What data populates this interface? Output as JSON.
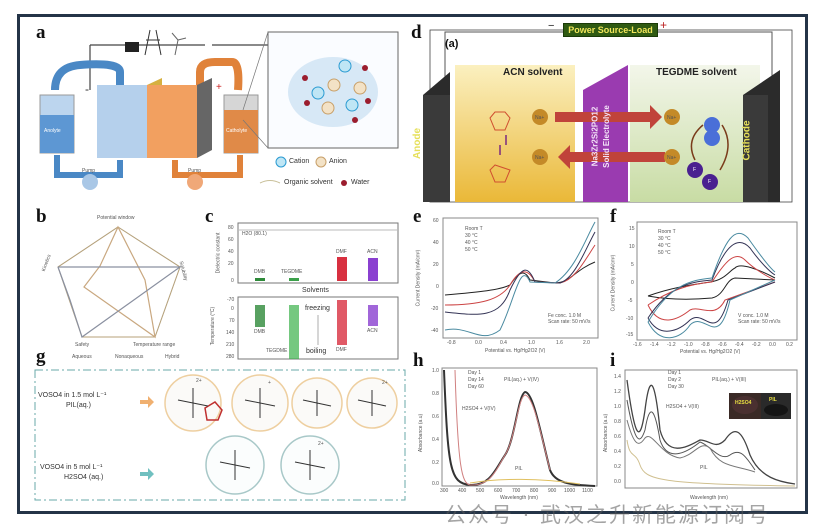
{
  "panels": {
    "a": {
      "label": "a",
      "anolyte": "Anolyte",
      "catholyte": "Catholyte",
      "pump": "Pump",
      "minus": "-",
      "plus": "+",
      "legend": {
        "cation": "Cation",
        "anion": "Anion",
        "solvent": "Organic solvent",
        "water": "Water"
      }
    },
    "b": {
      "label": "b",
      "axes": [
        "Potential window",
        "Solubility",
        "Temperature range",
        "Safety",
        "Kinetics"
      ],
      "legend": [
        "Aqueous",
        "Nonaqueous",
        "Hybrid"
      ]
    },
    "c": {
      "label": "c",
      "top_ylabel": "Dielectric constant",
      "bottom_ylabel": "Temperature (°C)",
      "xlabel": "Solvents",
      "h2o": "H2O (80.1)",
      "top_ticks": [
        "80",
        "60",
        "40",
        "20",
        "0"
      ],
      "bottom_ticks": [
        "-70",
        "0",
        "70",
        "140",
        "210",
        "280"
      ],
      "solvents": [
        "DMB",
        "TEGDME",
        "DMF",
        "ACN"
      ],
      "freezing": "freezing",
      "boiling": "boiling"
    },
    "d": {
      "label": "d",
      "sublabel": "(a)",
      "power": "Power Source-Load",
      "minus": "−",
      "plus": "+",
      "anode": "Anode",
      "cathode": "Cathode",
      "acn": "ACN solvent",
      "tegdme": "TEGDME solvent",
      "membrane_formula": "Na3Zr2Si2PO12",
      "membrane": "Solid Electrolyte",
      "na": "Na+",
      "f": "F"
    },
    "e": {
      "label": "e",
      "xlabel": "Potential vs. Hg/Hg2O2 (V)",
      "ylabel": "Current Density (mA/cm²)",
      "legend": [
        "Room T",
        "30 °C",
        "40 °C",
        "50 °C"
      ],
      "note1": "Fe conc. 1.0 M",
      "note2": "Scan rate: 50 mV/s",
      "yticks": [
        "60",
        "40",
        "20",
        "0",
        "-20",
        "-40"
      ],
      "xticks": [
        "-0.8",
        "0.0",
        "0.4",
        "1.0",
        "1.6",
        "2.0"
      ]
    },
    "f": {
      "label": "f",
      "xlabel": "Potential vs. Hg/Hg2O2 (V)",
      "ylabel": "Current Density (mA/cm²)",
      "legend": [
        "Room T",
        "30 °C",
        "40 °C",
        "50 °C"
      ],
      "note1": "V conc. 1.0 M",
      "note2": "Scan rate: 50 mV/s",
      "yticks": [
        "15",
        "10",
        "5",
        "0",
        "-5",
        "-10",
        "-15"
      ],
      "xticks": [
        "-1.6",
        "-1.4",
        "-1.2",
        "-1.0",
        "-0.8",
        "-0.6",
        "-0.4",
        "-0.2",
        "0.0",
        "0.2"
      ]
    },
    "g": {
      "label": "g",
      "row1": "VOSO4 in 1.5 mol L⁻¹",
      "row1b": "PIL(aq.)",
      "row2": "VOSO4 in 5 mol L⁻¹",
      "row2b": "H2SO4 (aq.)",
      "charges": [
        "2+",
        "+",
        "",
        "2+",
        "",
        "2+"
      ]
    },
    "h": {
      "label": "h",
      "xlabel": "Wavelength (nm)",
      "ylabel": "Absorbance (a.u)",
      "legend": [
        "Day 1",
        "Day 14",
        "Day 60"
      ],
      "ann1": "PIL(aq.) + V(IV)",
      "ann2": "H2SO4 + V(IV)",
      "ann3": "PIL",
      "yticks": [
        "1.0",
        "0.8",
        "0.6",
        "0.4",
        "0.2",
        "0.0"
      ],
      "xticks": [
        "300",
        "400",
        "500",
        "600",
        "700",
        "800",
        "900",
        "1000",
        "1100"
      ]
    },
    "i": {
      "label": "i",
      "xlabel": "Wavelength (nm)",
      "ylabel": "Absorbance (a.u)",
      "legend": [
        "Day 1",
        "Day 2",
        "Day 30"
      ],
      "ann1": "PIL(aq.) + V(III)",
      "ann2": "H2SO4 + V(III)",
      "ann3": "PIL",
      "photo1": "H2SO4",
      "photo2": "PIL",
      "yticks": [
        "1.4",
        "1.2",
        "1.0",
        "0.8",
        "0.6",
        "0.4",
        "0.2",
        "0.0"
      ]
    }
  },
  "watermark": "公众号 · 武汉之升新能源订阅号"
}
